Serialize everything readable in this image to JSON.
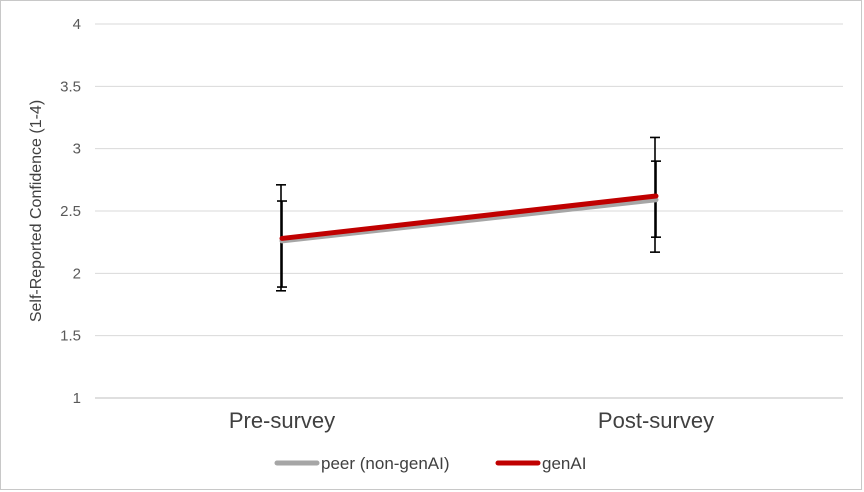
{
  "chart_data": {
    "type": "line",
    "title": "",
    "xlabel": "",
    "ylabel": "Self-Reported Confidence (1-4)",
    "categories": [
      "Pre-survey",
      "Post-survey"
    ],
    "ylim": [
      1,
      4
    ],
    "yticks": [
      "1",
      "1.5",
      "2",
      "2.5",
      "3",
      "3.5",
      "4"
    ],
    "grid": true,
    "legend": "bottom",
    "series": [
      {
        "name": "peer (non-genAI)",
        "color": "#a6a6a6",
        "values": [
          2.26,
          2.59
        ],
        "error_low": [
          1.89,
          2.29
        ],
        "error_high": [
          2.58,
          2.9
        ]
      },
      {
        "name": "genAI",
        "color": "#c00000",
        "values": [
          2.28,
          2.62
        ],
        "error_low": [
          1.86,
          2.17
        ],
        "error_high": [
          2.71,
          3.09
        ]
      }
    ]
  }
}
